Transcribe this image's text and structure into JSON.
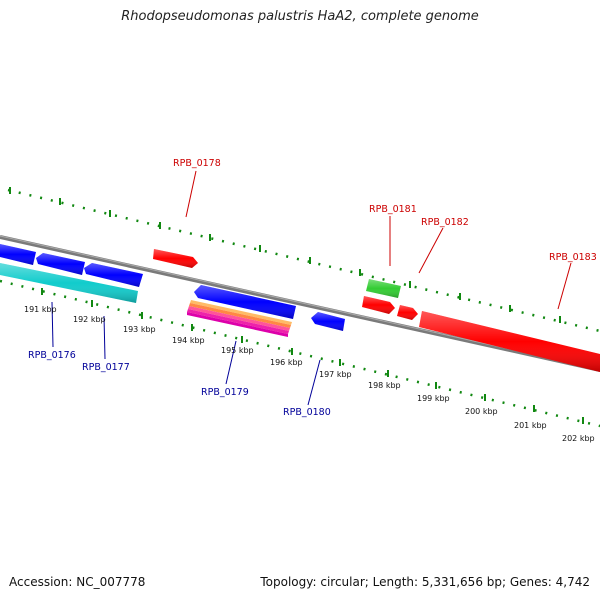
{
  "title": "Rhodopseudomonas palustris HaA2, complete genome",
  "accession": "Accession: NC_007778",
  "summary": "Topology: circular; Length: 5,331,656 bp; Genes: 4,742",
  "colors": {
    "forward_label": "#cc0000",
    "reverse_label": "#000099",
    "dots": "#118811",
    "backbone": "#808080"
  },
  "ticks": [
    "191 kbp",
    "192 kbp",
    "193 kbp",
    "194 kbp",
    "195 kbp",
    "196 kbp",
    "197 kbp",
    "198 kbp",
    "199 kbp",
    "200 kbp",
    "201 kbp",
    "202 kbp"
  ],
  "forward_labels": [
    "RPB_0178",
    "RPB_0181",
    "RPB_0182",
    "RPB_0183"
  ],
  "reverse_labels": [
    "RPB_0176",
    "RPB_0177",
    "RPB_0179",
    "RPB_0180"
  ]
}
